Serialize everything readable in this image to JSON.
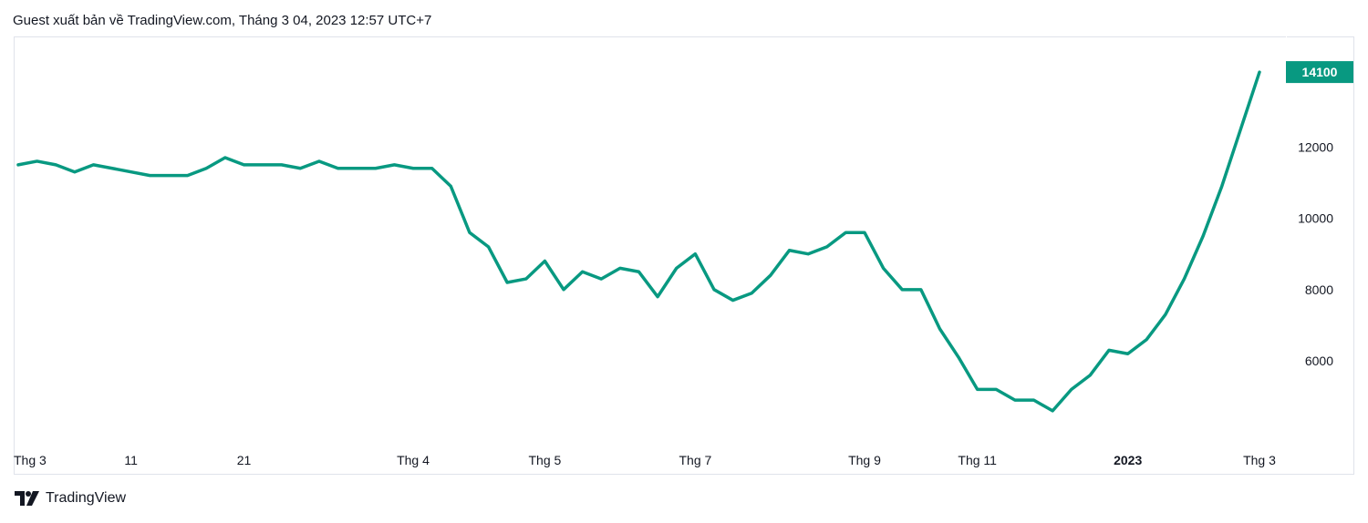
{
  "header": {
    "title": "Guest xuất bản về TradingView.com, Tháng 3 04, 2023 12:57 UTC+7"
  },
  "footer": {
    "brand": "TradingView",
    "logo_icon": "tradingview-logo-icon"
  },
  "colors": {
    "line": "#089981",
    "price_label_bg": "#089981",
    "grid_border": "#e0e3eb",
    "text": "#131722"
  },
  "chart_data": {
    "type": "line",
    "title": "",
    "xlabel": "",
    "ylabel": "",
    "ylim": [
      3600,
      15100
    ],
    "y_ticks": [
      6000,
      8000,
      10000,
      12000
    ],
    "last_price_label": "14100",
    "x_ticks": [
      {
        "label": "Thg 3",
        "index": 0,
        "bold": false
      },
      {
        "label": "11",
        "index": 6,
        "bold": false
      },
      {
        "label": "21",
        "index": 12,
        "bold": false
      },
      {
        "label": "Thg 4",
        "index": 21,
        "bold": false
      },
      {
        "label": "Thg 5",
        "index": 28,
        "bold": false
      },
      {
        "label": "Thg 7",
        "index": 36,
        "bold": false
      },
      {
        "label": "Thg 9",
        "index": 45,
        "bold": false
      },
      {
        "label": "Thg 11",
        "index": 51,
        "bold": false
      },
      {
        "label": "2023",
        "index": 59,
        "bold": true
      },
      {
        "label": "Thg 3",
        "index": 66,
        "bold": false
      }
    ],
    "series": [
      {
        "values": [
          11500,
          11600,
          11500,
          11300,
          11500,
          11400,
          11300,
          11200,
          11200,
          11200,
          11400,
          11700,
          11500,
          11500,
          11500,
          11400,
          11600,
          11400,
          11400,
          11400,
          11500,
          11400,
          11400,
          10900,
          9600,
          9200,
          8200,
          8300,
          8800,
          8000,
          8500,
          8300,
          8600,
          8500,
          7800,
          8600,
          9000,
          8000,
          7700,
          7900,
          8400,
          9100,
          9000,
          9200,
          9600,
          9600,
          8600,
          8000,
          8000,
          6900,
          6100,
          5200,
          5200,
          4900,
          4900,
          4600,
          5200,
          5600,
          6300,
          6200,
          6600,
          7300,
          8300,
          9500,
          10900,
          12500,
          14100
        ]
      }
    ]
  }
}
